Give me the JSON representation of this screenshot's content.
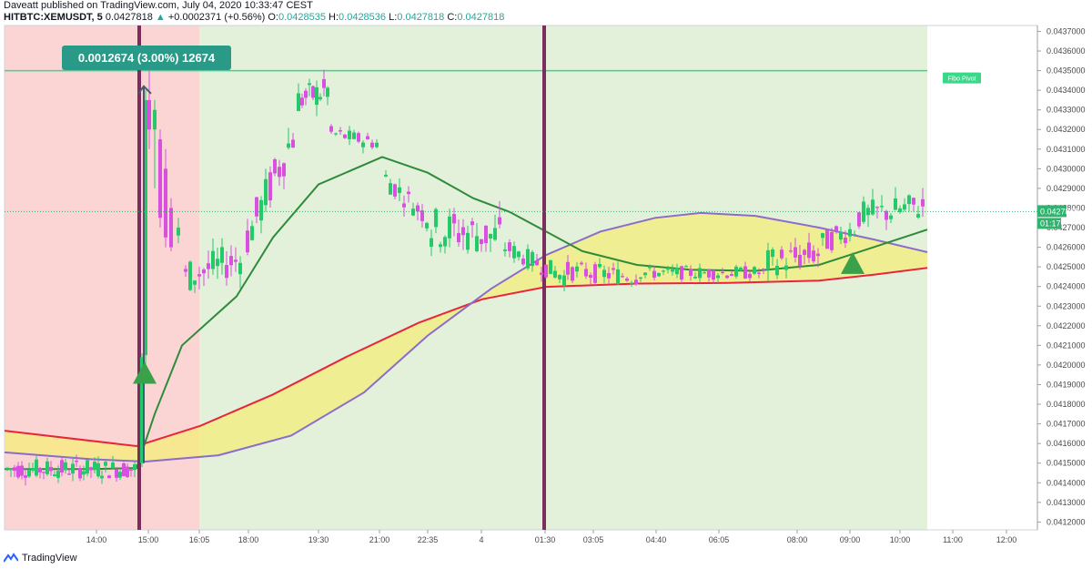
{
  "header": {
    "publisher_line": "Daveatt published on TradingView.com, July 04, 2020 10:33:47 CEST",
    "symbol": "HITBTC:XEMUSDT, 5",
    "last": "0.0427818",
    "change": "+0.0002371 (+0.56%)",
    "o_label": "O:",
    "o_value": "0.0428535",
    "h_label": "H:",
    "h_value": "0.0428536",
    "l_label": "L:",
    "l_value": "0.0427818",
    "c_label": "C:",
    "c_value": "0.0427818"
  },
  "footer": {
    "brand": "TradingView"
  },
  "colors": {
    "bull": "#26c96a",
    "bear": "#d94fe0",
    "ma_green": "#2e8b3a",
    "cloud_fill": "#f4ee7a",
    "ma_red": "#e8253d",
    "ma_purple": "#8a6cc9",
    "bg_red": "#fbd4d4",
    "bg_green": "#e3f0da",
    "pivot": "#39d98a",
    "vline": "#7b2d5e",
    "annotation_bg": "#2a9a88"
  },
  "chart_data": {
    "type": "candlestick",
    "y_ticks": [
      "0.0437000",
      "0.0436000",
      "0.0435000",
      "0.0434000",
      "0.0433000",
      "0.0432000",
      "0.0431000",
      "0.0430000",
      "0.0429000",
      "0.0428000",
      "0.0427000",
      "0.0426000",
      "0.0425000",
      "0.0424000",
      "0.0423000",
      "0.0422000",
      "0.0421000",
      "0.0420000",
      "0.0419000",
      "0.0418000",
      "0.0417000",
      "0.0416000",
      "0.0415000",
      "0.0414000",
      "0.0413000",
      "0.0412000"
    ],
    "x_ticks": [
      "14:00",
      "15:00",
      "16:05",
      "18:00",
      "19:30",
      "21:00",
      "22:35",
      "4",
      "01:30",
      "03:05",
      "04:40",
      "06:05",
      "08:00",
      "09:00",
      "10:00",
      "11:00",
      "12:00"
    ],
    "ylim": [
      0.04116,
      0.04373
    ],
    "price_label": "0.0427818",
    "countdown_label": "01:17",
    "pivot_level": 0.0435,
    "pivot_label": "Fibo Pivot",
    "annotation": "0.0012674 (3.00%) 12674",
    "markers": [
      {
        "shape": "up-triangle",
        "x": "15:00",
        "y": 0.04196
      },
      {
        "shape": "up-triangle",
        "x": "09:00",
        "y": 0.04252
      }
    ],
    "background_zones": [
      {
        "color": "red",
        "from": "13:00",
        "to": "16:05"
      },
      {
        "color": "green",
        "from": "16:05",
        "to": "10:30"
      }
    ]
  }
}
